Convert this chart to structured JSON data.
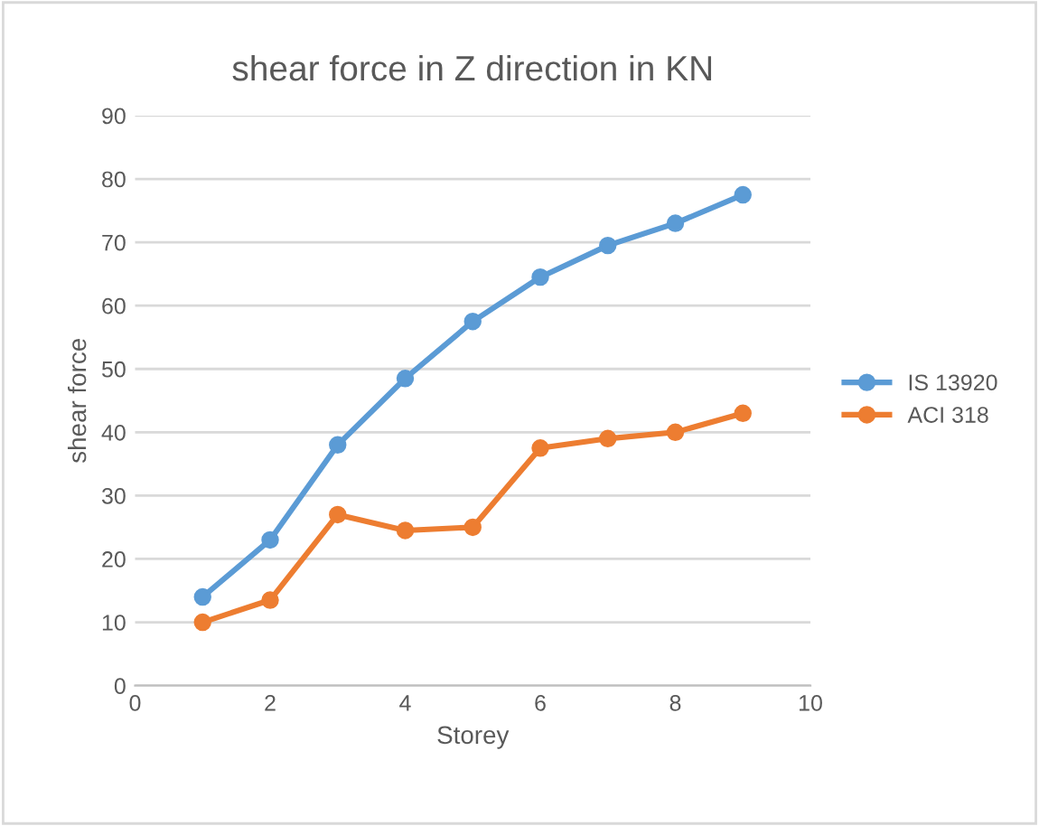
{
  "chart_data": {
    "type": "line",
    "title": "shear force in Z direction in KN",
    "xlabel": "Storey",
    "ylabel": "shear force",
    "x": [
      1,
      2,
      3,
      4,
      5,
      6,
      7,
      8,
      9
    ],
    "series": [
      {
        "name": "IS 13920",
        "color": "#5b9bd5",
        "values": [
          14,
          23,
          38,
          48.5,
          57.5,
          64.5,
          69.5,
          73,
          77.5
        ]
      },
      {
        "name": "ACI 318",
        "color": "#ed7d31",
        "values": [
          10,
          13.5,
          27,
          24.5,
          25,
          37.5,
          39,
          40,
          43
        ]
      }
    ],
    "xlim": [
      0,
      10
    ],
    "xticks": [
      0,
      2,
      4,
      6,
      8,
      10
    ],
    "ylim": [
      0,
      90
    ],
    "yticks": [
      0,
      10,
      20,
      30,
      40,
      50,
      60,
      70,
      80,
      90
    ],
    "grid": "y",
    "legend": "right",
    "marker": "circle",
    "line_style": "solid"
  }
}
